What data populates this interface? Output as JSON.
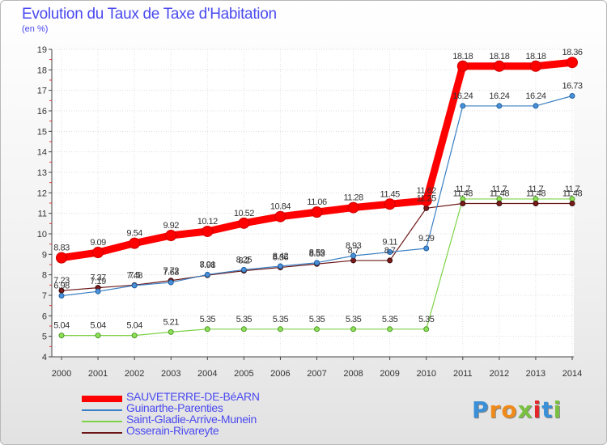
{
  "title": "Evolution du Taux de Taxe d'Habitation",
  "subtitle": "(en %)",
  "chart_data": {
    "type": "line",
    "title": "Evolution du Taux de Taxe d'Habitation",
    "ylabel": "(en %)",
    "x": [
      2000,
      2001,
      2002,
      2003,
      2004,
      2005,
      2006,
      2007,
      2008,
      2009,
      2010,
      2011,
      2012,
      2013,
      2014
    ],
    "ylim": [
      4,
      19
    ],
    "yticks": [
      4,
      5,
      6,
      7,
      8,
      9,
      10,
      11,
      12,
      13,
      14,
      15,
      16,
      17,
      18,
      19
    ],
    "legend_position": "bottom-left",
    "series": [
      {
        "name": "SAUVETERRE-DE-BéARN",
        "color": "#ff0000",
        "values": [
          8.83,
          9.09,
          9.54,
          9.92,
          10.12,
          10.52,
          10.84,
          11.06,
          11.28,
          11.45,
          11.62,
          18.18,
          18.18,
          18.18,
          18.36
        ]
      },
      {
        "name": "Guinarthe-Parenties",
        "color": "#3b80c4",
        "values": [
          6.98,
          7.19,
          7.48,
          7.63,
          8.01,
          8.25,
          8.42,
          8.59,
          8.93,
          9.11,
          9.29,
          16.24,
          16.24,
          16.24,
          16.73
        ]
      },
      {
        "name": "Saint-Gladie-Arrive-Munein",
        "color": "#7ed348",
        "values": [
          5.04,
          5.04,
          5.04,
          5.21,
          5.35,
          5.35,
          5.35,
          5.35,
          5.35,
          5.35,
          5.35,
          11.7,
          11.7,
          11.7,
          11.7
        ]
      },
      {
        "name": "Osserain-Rivareyte",
        "color": "#6b1717",
        "values": [
          7.23,
          7.37,
          7.5,
          7.72,
          7.98,
          8.2,
          8.36,
          8.53,
          8.7,
          8.7,
          11.25,
          11.48,
          11.48,
          11.48,
          11.48
        ]
      }
    ],
    "data_labels": [
      [
        "8.83",
        "9.09",
        "9.54",
        "9.92",
        "10.12",
        "10.52",
        "10.84",
        "11.06",
        "11.28",
        "11.45",
        "11.62",
        "18.18",
        "18.18",
        "18.18",
        "18.36"
      ],
      [
        "6.98",
        "7.19",
        "7.48",
        "7.63",
        "8.01",
        "8.25",
        "8.42",
        "8.59",
        "8.93",
        "9.11",
        "9.29",
        "16.24",
        "16.24",
        "16.24",
        "16.73"
      ],
      [
        "5.04",
        "5.04",
        "5.04",
        "5.21",
        "5.35",
        "5.35",
        "5.35",
        "5.35",
        "5.35",
        "5.35",
        "5.35",
        "11.7",
        "11.7",
        "11.7",
        "11.7"
      ],
      [
        "7.23",
        "7.37",
        "7.5",
        "7.72",
        "7.98",
        "8.2",
        "8.36",
        "8.53",
        "8.7",
        "8.7",
        "11.25",
        "11.48",
        "11.48",
        "11.48",
        "11.48"
      ]
    ]
  },
  "logo": {
    "text": "Proxiti"
  }
}
